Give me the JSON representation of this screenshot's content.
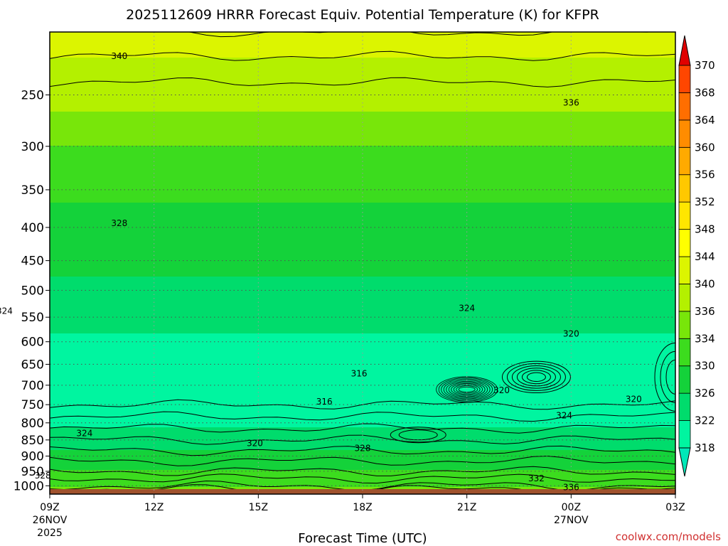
{
  "chart_data": {
    "type": "heatmap",
    "title": "2025112609 HRRR Forecast Equiv. Potential Temperature (K) for KFPR",
    "xlabel": "Forecast Time (UTC)",
    "x_ticks": [
      {
        "value": 0,
        "label": "09Z",
        "sub1": "26NOV",
        "sub2": "2025"
      },
      {
        "value": 3,
        "label": "12Z",
        "sub1": "",
        "sub2": ""
      },
      {
        "value": 6,
        "label": "15Z",
        "sub1": "",
        "sub2": ""
      },
      {
        "value": 9,
        "label": "18Z",
        "sub1": "",
        "sub2": ""
      },
      {
        "value": 12,
        "label": "21Z",
        "sub1": "",
        "sub2": ""
      },
      {
        "value": 15,
        "label": "00Z",
        "sub1": "27NOV",
        "sub2": ""
      },
      {
        "value": 18,
        "label": "03Z",
        "sub1": "",
        "sub2": ""
      }
    ],
    "xlim_hours": [
      0,
      18
    ],
    "ylabel": "",
    "y_scale": "log-pressure",
    "ylim_hpa": [
      1030,
      200
    ],
    "y_ticks": [
      250,
      300,
      350,
      400,
      450,
      500,
      550,
      600,
      650,
      700,
      750,
      800,
      850,
      900,
      950,
      1000
    ],
    "grid": true,
    "colorbar": {
      "units": "K",
      "placement": "right",
      "levels": [
        318,
        322,
        326,
        330,
        334,
        336,
        340,
        344,
        348,
        352,
        356,
        360,
        364,
        368,
        370
      ],
      "colors": [
        "#00f5a0",
        "#00dc6c",
        "#14d23a",
        "#3cdc1e",
        "#78e60a",
        "#b4f000",
        "#dcf500",
        "#ffff00",
        "#ffe600",
        "#ffc800",
        "#ffaa00",
        "#ff8c00",
        "#ff6e00",
        "#ff4600",
        "#ff2000"
      ],
      "arrow_low": "#00e8b8",
      "arrow_high": "#e00000"
    },
    "profile_p": [
      200,
      250,
      300,
      350,
      400,
      450,
      500,
      550,
      600,
      650,
      700,
      750,
      800,
      850,
      900,
      950,
      1000,
      1020
    ],
    "profile_theta_e": [
      342,
      337,
      334,
      331,
      328,
      327,
      325,
      324,
      321,
      318,
      317,
      318,
      321,
      324,
      327,
      330,
      334,
      337
    ],
    "contour_labels": [
      {
        "value": "340",
        "hour": 2.0,
        "p": 218
      },
      {
        "value": "336",
        "hour": 15.0,
        "p": 257
      },
      {
        "value": "328",
        "hour": 2.0,
        "p": 394
      },
      {
        "value": "324",
        "hour": -1.3,
        "p": 538
      },
      {
        "value": "324",
        "hour": 12.0,
        "p": 533
      },
      {
        "value": "320",
        "hour": 15.0,
        "p": 583
      },
      {
        "value": "316",
        "hour": 8.9,
        "p": 672
      },
      {
        "value": "316",
        "hour": 7.9,
        "p": 742
      },
      {
        "value": "320",
        "hour": 13.0,
        "p": 713
      },
      {
        "value": "320",
        "hour": 16.8,
        "p": 736
      },
      {
        "value": "324",
        "hour": 14.8,
        "p": 780
      },
      {
        "value": "324",
        "hour": 1.0,
        "p": 830
      },
      {
        "value": "320",
        "hour": 5.9,
        "p": 860
      },
      {
        "value": "328",
        "hour": 9.0,
        "p": 875
      },
      {
        "value": "328",
        "hour": -0.2,
        "p": 965
      },
      {
        "value": "332",
        "hour": 14.0,
        "p": 975
      },
      {
        "value": "336",
        "hour": 15.0,
        "p": 1006
      }
    ],
    "surface_top_hpa": 1012
  },
  "credit": "coolwx.com/models"
}
